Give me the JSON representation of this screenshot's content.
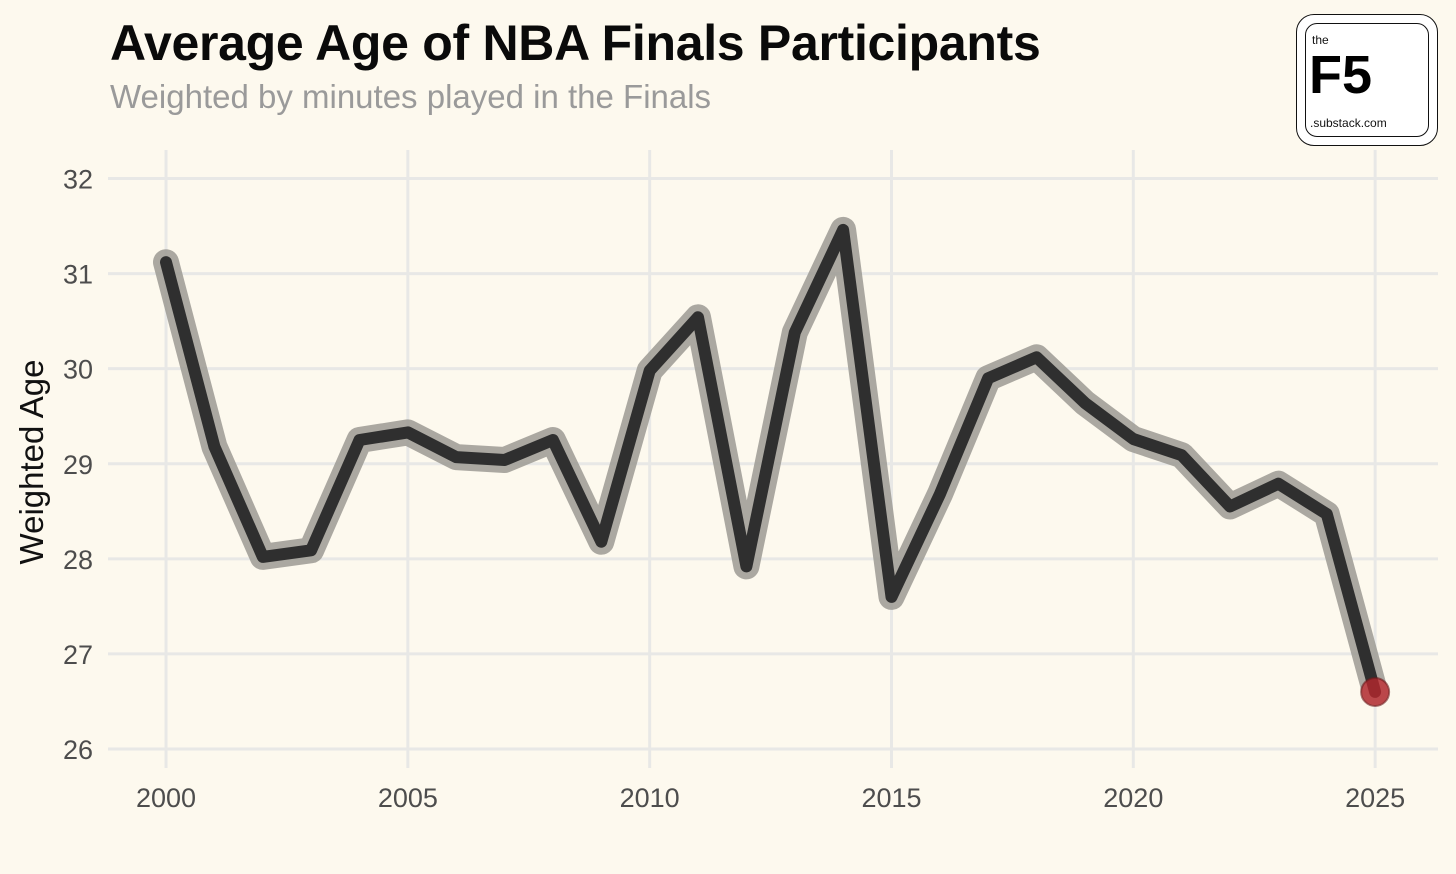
{
  "header": {
    "title": "Average Age of NBA Finals Participants",
    "subtitle": "Weighted by minutes played in the Finals"
  },
  "logo": {
    "top_text": "the",
    "main_text": "F5",
    "bottom_text": ".substack.com"
  },
  "colors": {
    "background": "#fdf9ee",
    "line": "#2f2f2f",
    "halo": "#9c9a93",
    "highlight_point": "#c0272d",
    "grid": "#e8e8e6",
    "tick_text": "#4d4d4d"
  },
  "chart_data": {
    "type": "line",
    "title": "Average Age of NBA Finals Participants",
    "subtitle": "Weighted by minutes played in the Finals",
    "xlabel": "",
    "ylabel": "Weighted Age",
    "xlim": [
      1998.8,
      2026.3
    ],
    "ylim": [
      25.8,
      32.3
    ],
    "xticks": [
      2000,
      2005,
      2010,
      2015,
      2020,
      2025
    ],
    "yticks": [
      26,
      27,
      28,
      29,
      30,
      31,
      32
    ],
    "grid": true,
    "legend": "none",
    "highlight": {
      "x": 2025,
      "y": 26.6
    },
    "series": [
      {
        "x": [
          2000,
          2001,
          2002,
          2003,
          2004,
          2005,
          2006,
          2007,
          2008,
          2009,
          2010,
          2011,
          2012,
          2013,
          2014,
          2015,
          2016,
          2017,
          2018,
          2019,
          2020,
          2021,
          2022,
          2023,
          2024,
          2025
        ],
        "values": [
          31.12,
          29.18,
          28.02,
          28.09,
          29.25,
          29.33,
          29.07,
          29.04,
          29.25,
          28.18,
          29.98,
          30.54,
          27.92,
          30.38,
          31.46,
          27.6,
          28.68,
          29.9,
          30.12,
          29.64,
          29.26,
          29.09,
          28.55,
          28.79,
          28.47,
          26.6
        ]
      }
    ]
  }
}
